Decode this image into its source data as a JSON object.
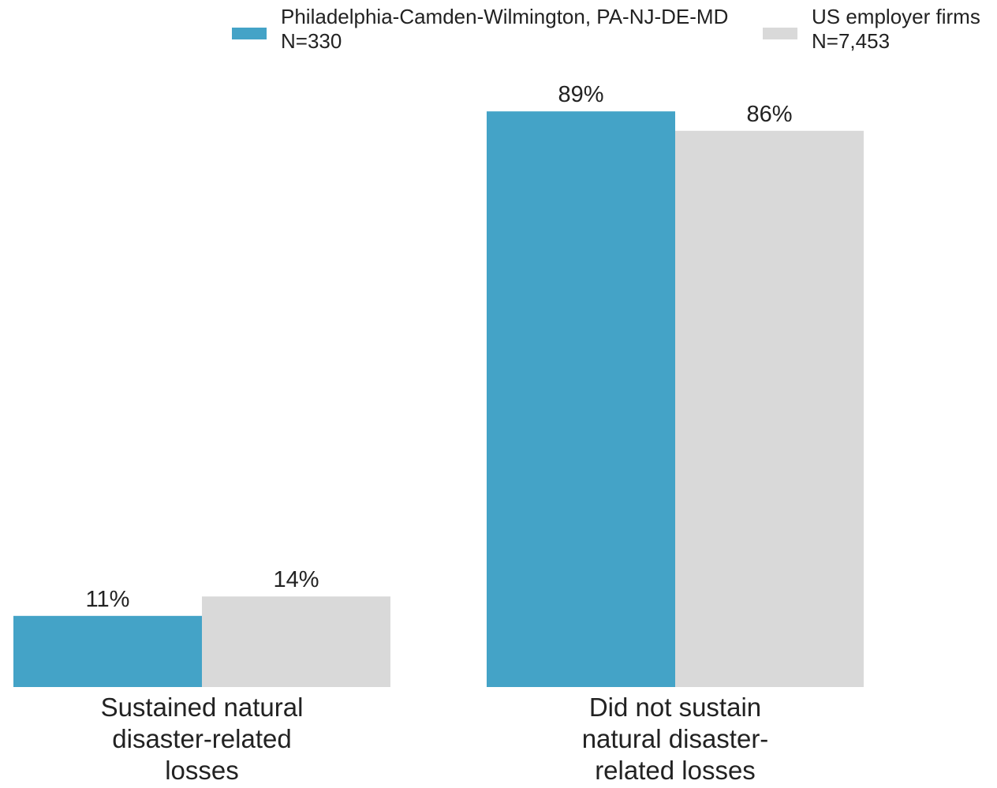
{
  "legend": {
    "items": [
      {
        "name": "Philadelphia-Camden-Wilmington, PA-NJ-DE-MD",
        "sub": "N=330",
        "color": "#44a3c7"
      },
      {
        "name": "US employer firms",
        "sub": "N=7,453",
        "color": "#d9d9d9"
      }
    ]
  },
  "chart_data": {
    "type": "bar",
    "title": "",
    "xlabel": "",
    "ylabel": "",
    "ylim": [
      0,
      100
    ],
    "grid": false,
    "legend_position": "top-right",
    "categories": [
      "Sustained natural disaster-related losses",
      "Did not sustain natural disaster-related losses"
    ],
    "category_lines": [
      [
        "Sustained natural",
        "disaster-related",
        "losses"
      ],
      [
        "Did not sustain",
        "natural disaster-",
        "related losses"
      ]
    ],
    "series": [
      {
        "name": "Philadelphia-Camden-Wilmington, PA-NJ-DE-MD",
        "values": [
          11,
          89
        ],
        "labels": [
          "11%",
          "89%"
        ],
        "color": "#44a3c7"
      },
      {
        "name": "US employer firms",
        "values": [
          14,
          86
        ],
        "labels": [
          "14%",
          "86%"
        ],
        "color": "#d9d9d9"
      }
    ]
  }
}
